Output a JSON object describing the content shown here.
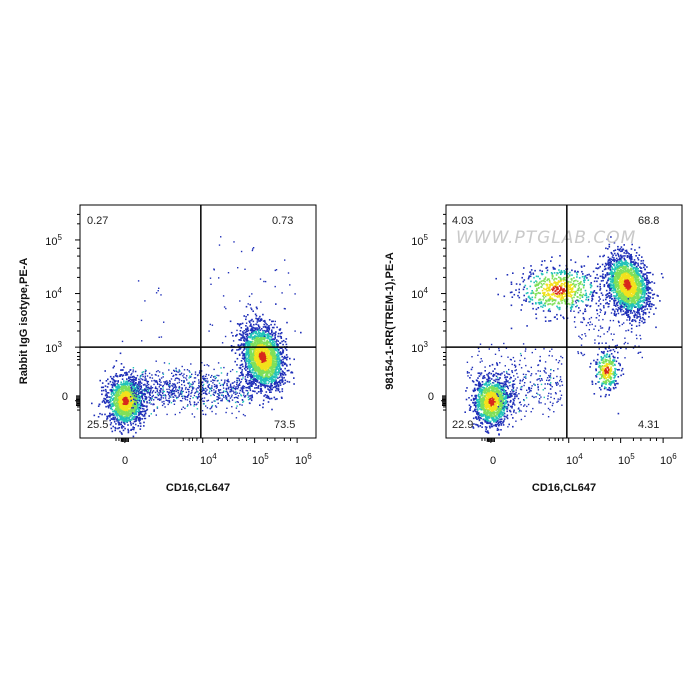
{
  "watermark": "WWW.PTGLAB.COM",
  "colors": {
    "density_low": "#1f2fb8",
    "density_mid": "#22c3b8",
    "density_high": "#f2e21c",
    "density_peak": "#d8281c",
    "gate": "#000000"
  },
  "chart_data": [
    {
      "type": "scatter",
      "title": "",
      "xlabel": "CD16,CL647",
      "ylabel": "Rabbit IgG isotype,PE-A",
      "x_scale": "biexponential",
      "y_scale": "biexponential",
      "x_ticks": [
        "0",
        "10^4",
        "10^5",
        "10^6"
      ],
      "y_ticks": [
        "0",
        "10^3",
        "10^4",
        "10^5"
      ],
      "quadrant_gate": {
        "x": 8000,
        "y": 1000
      },
      "quadrants": {
        "upper_left": "0.27",
        "upper_right": "0.73",
        "lower_left": "25.5",
        "lower_right": "73.5"
      },
      "populations": [
        {
          "x": 0,
          "y": 0,
          "density": "high"
        },
        {
          "x": 150000,
          "y": 300,
          "density": "peak"
        }
      ]
    },
    {
      "type": "scatter",
      "title": "",
      "xlabel": "CD16,CL647",
      "ylabel": "98154-1-RR(TREM-1),PE-A",
      "x_scale": "biexponential",
      "y_scale": "biexponential",
      "x_ticks": [
        "0",
        "10^4",
        "10^5",
        "10^6"
      ],
      "y_ticks": [
        "0",
        "10^3",
        "10^4",
        "10^5"
      ],
      "quadrant_gate": {
        "x": 8000,
        "y": 1000
      },
      "quadrants": {
        "upper_left": "4.03",
        "upper_right": "68.8",
        "lower_left": "22.9",
        "lower_right": "4.31"
      },
      "populations": [
        {
          "x": 0,
          "y": 0,
          "density": "high"
        },
        {
          "x": 140000,
          "y": 15000,
          "density": "peak"
        },
        {
          "x": 5000,
          "y": 12000,
          "density": "low"
        },
        {
          "x": 60000,
          "y": 100,
          "density": "low"
        }
      ]
    }
  ]
}
